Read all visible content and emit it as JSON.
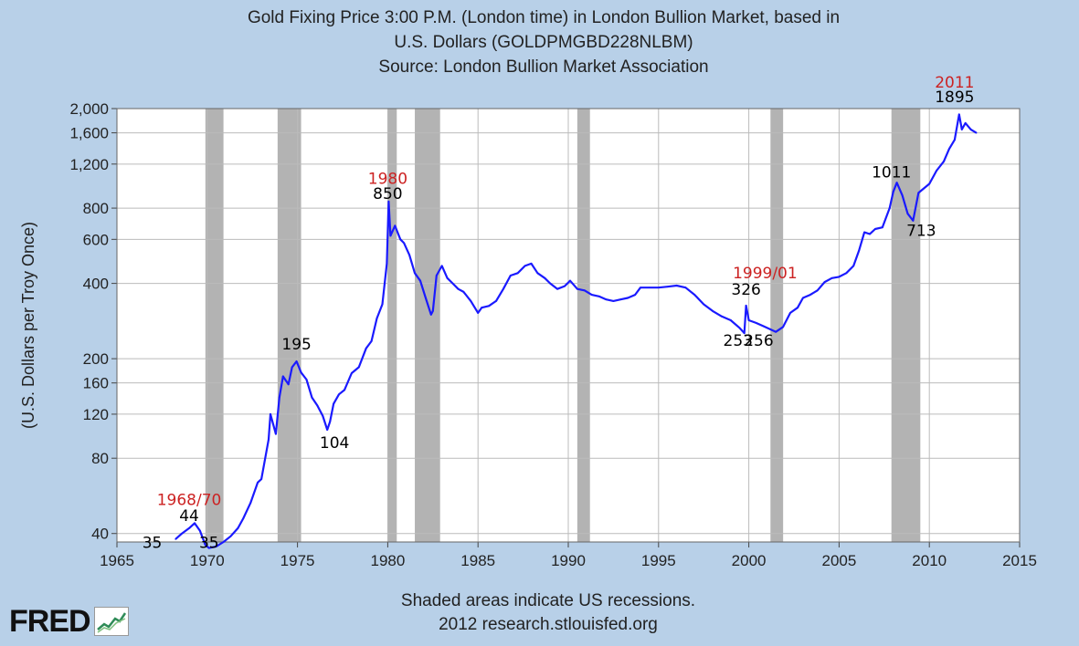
{
  "chart_data": {
    "type": "line",
    "title_lines": [
      "Gold Fixing Price 3:00 P.M. (London time) in London Bullion Market, based in",
      "U.S. Dollars (GOLDPMGBD228NLBM)",
      "Source: London Bullion Market Association"
    ],
    "ylabel": "(U.S. Dollars per Troy Once)",
    "xlabel": "",
    "y_scale": "log",
    "ylim": [
      37,
      2000
    ],
    "xlim": [
      1965,
      2015
    ],
    "y_ticks": [
      {
        "value": 40,
        "label": "40"
      },
      {
        "value": 80,
        "label": "80"
      },
      {
        "value": 120,
        "label": "120"
      },
      {
        "value": 160,
        "label": "160"
      },
      {
        "value": 200,
        "label": "200"
      },
      {
        "value": 400,
        "label": "400"
      },
      {
        "value": 600,
        "label": "600"
      },
      {
        "value": 800,
        "label": "800"
      },
      {
        "value": 1200,
        "label": "1,200"
      },
      {
        "value": 1600,
        "label": "1,600"
      },
      {
        "value": 2000,
        "label": "2,000"
      }
    ],
    "x_ticks": [
      {
        "value": 1965,
        "label": "1965"
      },
      {
        "value": 1970,
        "label": "1970"
      },
      {
        "value": 1975,
        "label": "1975"
      },
      {
        "value": 1980,
        "label": "1980"
      },
      {
        "value": 1985,
        "label": "1985"
      },
      {
        "value": 1990,
        "label": "1990"
      },
      {
        "value": 1995,
        "label": "1995"
      },
      {
        "value": 2000,
        "label": "2000"
      },
      {
        "value": 2005,
        "label": "2005"
      },
      {
        "value": 2010,
        "label": "2010"
      },
      {
        "value": 2015,
        "label": "2015"
      }
    ],
    "grid": true,
    "recessions": [
      [
        1969.9,
        1970.9
      ],
      [
        1973.9,
        1975.2
      ],
      [
        1980.0,
        1980.5
      ],
      [
        1981.5,
        1982.9
      ],
      [
        1990.5,
        1991.2
      ],
      [
        2001.2,
        2001.9
      ],
      [
        2007.9,
        2009.5
      ]
    ],
    "series": [
      {
        "color": "#1a1aff",
        "x": [
          1968.25,
          1968.6,
          1969.0,
          1969.3,
          1969.6,
          1969.9,
          1970.1,
          1970.5,
          1970.9,
          1971.3,
          1971.7,
          1972.0,
          1972.4,
          1972.8,
          1973.0,
          1973.4,
          1973.5,
          1973.8,
          1974.0,
          1974.2,
          1974.5,
          1974.7,
          1974.95,
          1975.2,
          1975.5,
          1975.8,
          1976.1,
          1976.4,
          1976.65,
          1976.8,
          1977.0,
          1977.3,
          1977.6,
          1978.0,
          1978.4,
          1978.8,
          1979.1,
          1979.4,
          1979.7,
          1979.95,
          1980.05,
          1980.15,
          1980.4,
          1980.7,
          1980.9,
          1981.2,
          1981.5,
          1981.8,
          1982.1,
          1982.4,
          1982.5,
          1982.7,
          1983.0,
          1983.3,
          1983.6,
          1983.9,
          1984.2,
          1984.6,
          1985.0,
          1985.2,
          1985.6,
          1986.0,
          1986.4,
          1986.8,
          1987.2,
          1987.6,
          1987.95,
          1988.3,
          1988.7,
          1989.0,
          1989.4,
          1989.8,
          1990.1,
          1990.5,
          1990.9,
          1991.3,
          1991.7,
          1992.1,
          1992.5,
          1992.9,
          1993.3,
          1993.7,
          1994.0,
          1994.5,
          1995.0,
          1995.5,
          1996.0,
          1996.5,
          1997.0,
          1997.5,
          1998.0,
          1998.5,
          1999.0,
          1999.5,
          1999.75,
          1999.85,
          2000.0,
          2000.4,
          2000.8,
          2001.2,
          2001.5,
          2001.9,
          2002.3,
          2002.7,
          2003.0,
          2003.4,
          2003.8,
          2004.2,
          2004.6,
          2005.0,
          2005.4,
          2005.8,
          2006.1,
          2006.4,
          2006.7,
          2007.0,
          2007.4,
          2007.8,
          2008.0,
          2008.2,
          2008.5,
          2008.8,
          2009.1,
          2009.4,
          2009.7,
          2010.0,
          2010.4,
          2010.8,
          2011.1,
          2011.4,
          2011.65,
          2011.8,
          2012.0,
          2012.3,
          2012.6
        ],
        "values": [
          38,
          40,
          42,
          44,
          41,
          36,
          35,
          35.5,
          37,
          39,
          42,
          46,
          53,
          64,
          66,
          95,
          120,
          100,
          140,
          170,
          158,
          185,
          195,
          176,
          165,
          140,
          130,
          118,
          104,
          112,
          132,
          144,
          150,
          175,
          185,
          220,
          235,
          290,
          330,
          480,
          850,
          620,
          680,
          600,
          580,
          520,
          440,
          410,
          350,
          300,
          310,
          430,
          470,
          420,
          400,
          380,
          370,
          340,
          305,
          320,
          325,
          340,
          380,
          430,
          440,
          470,
          480,
          440,
          420,
          400,
          380,
          390,
          410,
          380,
          375,
          360,
          355,
          345,
          340,
          345,
          350,
          360,
          385,
          385,
          385,
          388,
          392,
          385,
          360,
          330,
          310,
          295,
          285,
          265,
          253,
          326,
          285,
          278,
          270,
          262,
          256,
          268,
          305,
          320,
          350,
          360,
          375,
          405,
          420,
          425,
          440,
          470,
          540,
          640,
          630,
          660,
          670,
          800,
          930,
          1011,
          900,
          760,
          713,
          920,
          960,
          1000,
          1130,
          1230,
          1380,
          1500,
          1895,
          1650,
          1750,
          1650,
          1600
        ]
      }
    ],
    "annotations": [
      {
        "text": "1968/70",
        "x": 1969.0,
        "y": 52.0,
        "color": "#cc2222"
      },
      {
        "text": "44",
        "x": 1969.0,
        "y": 44.9,
        "color": "#000000"
      },
      {
        "text": "35",
        "x": 1966.95,
        "y": 35.0,
        "color": "#000000"
      },
      {
        "text": "35",
        "x": 1970.1,
        "y": 35.0,
        "color": "#000000"
      },
      {
        "text": "195",
        "x": 1974.95,
        "y": 218,
        "color": "#000000"
      },
      {
        "text": "104",
        "x": 1977.05,
        "y": 88,
        "color": "#000000"
      },
      {
        "text": "1980",
        "x": 1980.0,
        "y": 1000,
        "color": "#cc2222"
      },
      {
        "text": "850",
        "x": 1980.0,
        "y": 870,
        "color": "#000000"
      },
      {
        "text": "1999/01",
        "x": 2000.9,
        "y": 420,
        "color": "#cc2222"
      },
      {
        "text": "326",
        "x": 1999.85,
        "y": 360,
        "color": "#000000"
      },
      {
        "text": "253",
        "x": 1999.4,
        "y": 225,
        "color": "#000000"
      },
      {
        "text": "256",
        "x": 2000.55,
        "y": 225,
        "color": "#000000"
      },
      {
        "text": "1011",
        "x": 2007.9,
        "y": 1060,
        "color": "#000000"
      },
      {
        "text": "713",
        "x": 2009.55,
        "y": 620,
        "color": "#000000"
      },
      {
        "text": "2011",
        "x": 2011.4,
        "y": 2430,
        "color": "#cc2222"
      },
      {
        "text": "1895",
        "x": 2011.4,
        "y": 2120,
        "color": "#000000"
      }
    ]
  },
  "footnotes": {
    "line1": "Shaded areas indicate US recessions.",
    "line2": "2012 research.stlouisfed.org"
  },
  "logo": {
    "text": "FRED",
    "icon": "fred-chart-icon"
  }
}
